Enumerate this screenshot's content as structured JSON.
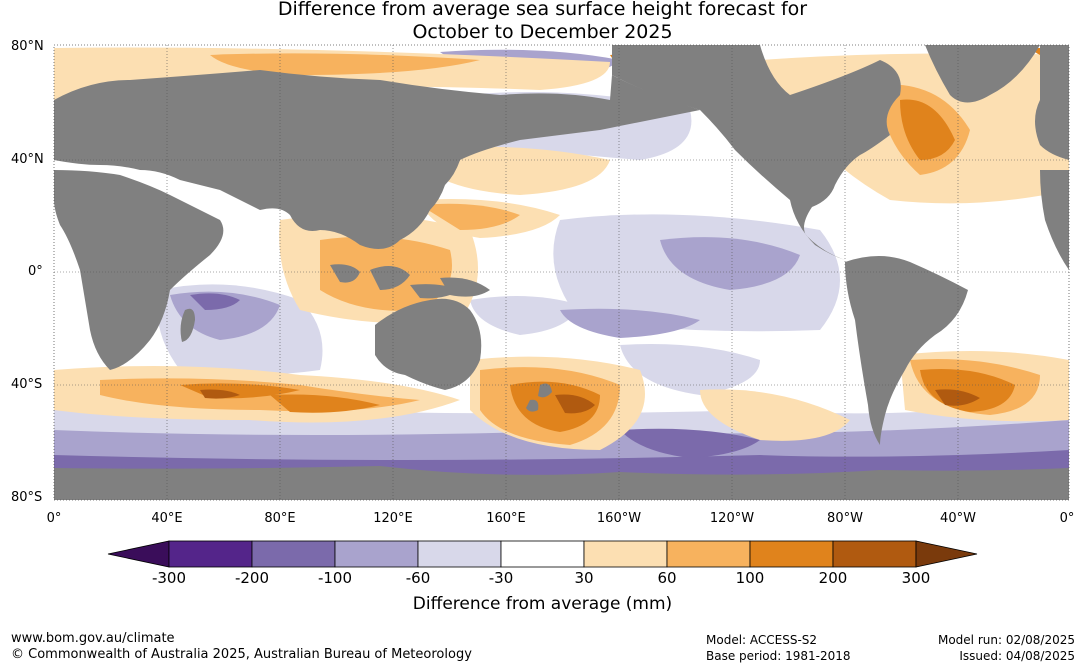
{
  "title": {
    "line1": "Difference from average sea surface height forecast for",
    "line2": "October to December 2025"
  },
  "lat_labels": [
    "80°N",
    "40°N",
    "0°",
    "40°S",
    "80°S"
  ],
  "lon_labels": [
    "0°",
    "40°E",
    "80°E",
    "120°E",
    "160°E",
    "160°W",
    "120°W",
    "80°W",
    "40°W",
    "0°"
  ],
  "colorbar": {
    "title": "Difference from average (mm)",
    "tick_labels": [
      "-300",
      "-200",
      "-100",
      "-60",
      "-30",
      "30",
      "60",
      "100",
      "200",
      "300"
    ],
    "colors": [
      "#3a0d5a",
      "#54258a",
      "#7b6aab",
      "#a9a3cd",
      "#d8d8ea",
      "#ffffff",
      "#fcdfb2",
      "#f7b25e",
      "#e0831c",
      "#b05a10",
      "#7a3a0c"
    ]
  },
  "colors": {
    "land": "#808080",
    "ocean_base": "#ffffff",
    "grid": "#555555"
  },
  "footer": {
    "url": "www.bom.gov.au/climate",
    "copyright": "© Commonwealth of Australia 2025, Australian Bureau of Meteorology",
    "model": "Model: ACCESS-S2",
    "base_period": "Base period: 1981-2018",
    "model_run": "Model run: 02/08/2025",
    "issued": "Issued: 04/08/2025"
  }
}
